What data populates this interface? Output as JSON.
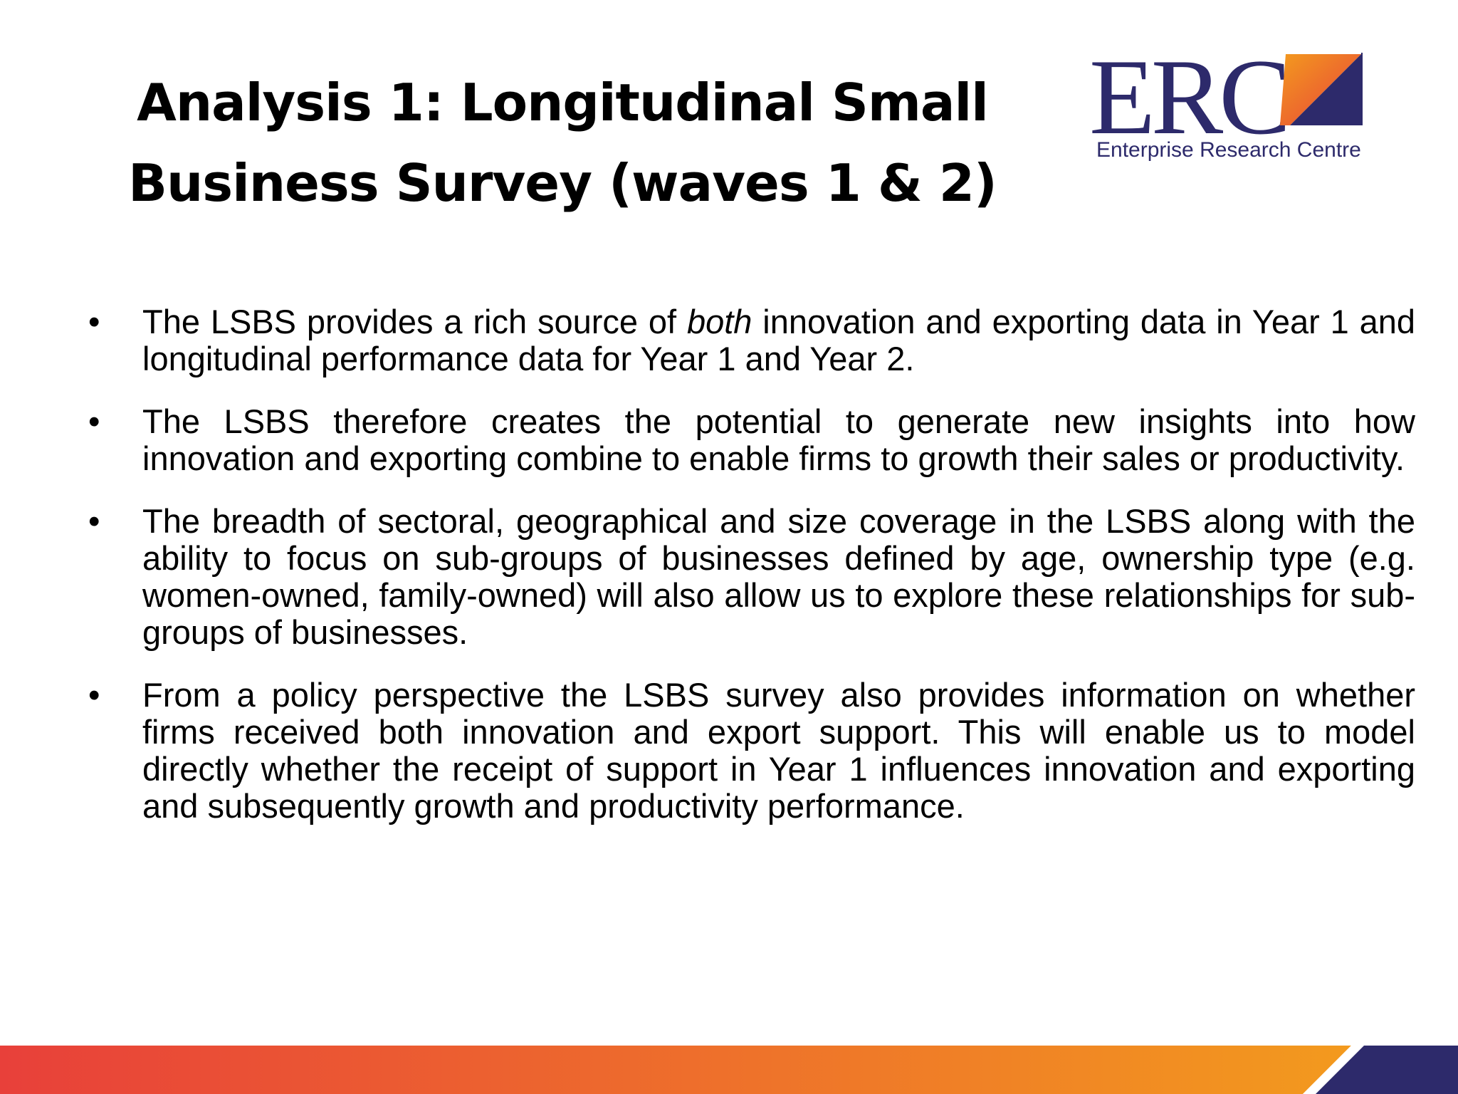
{
  "slide": {
    "title_lines": [
      "Analysis 1: Longitudinal Small",
      "Business Survey (waves 1 & 2)"
    ]
  },
  "logo": {
    "letters": "ERC",
    "tagline": "Enterprise Research Centre",
    "colors": {
      "navy": "#2d2a6b",
      "red": "#e8403a",
      "orange": "#f39a1e"
    }
  },
  "bullets": [
    {
      "before": "The LSBS provides a rich source of ",
      "emphasis": "both",
      "after": " innovation and exporting data in Year 1 and longitudinal performance data for Year 1 and Year 2."
    },
    {
      "text": "The LSBS therefore creates the potential to generate new insights into how innovation and exporting combine to enable firms to growth their sales or productivity."
    },
    {
      "text": "The breadth of sectoral, geographical and size coverage in the LSBS along with the ability to focus on sub-groups of businesses defined by age, ownership type (e.g. women-owned, family-owned) will also allow us to explore these relationships for sub-groups of businesses."
    },
    {
      "text": "From a policy perspective the LSBS survey also provides information on whether firms received both innovation and export support. This will enable us to model directly whether the receipt of support in Year 1 influences innovation and exporting and subsequently growth and productivity performance."
    }
  ],
  "bullet_symbol": "•",
  "footer": {
    "gradient_start": "#e8403a",
    "gradient_end": "#f39a1e",
    "corner_color": "#2d2a6b"
  }
}
